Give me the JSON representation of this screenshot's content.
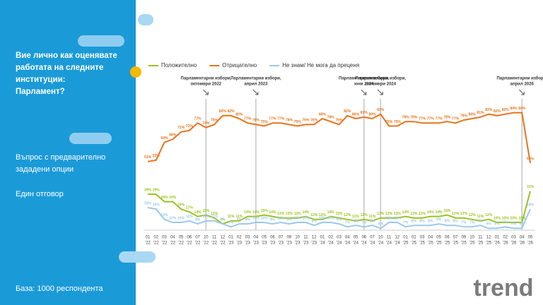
{
  "panel": {
    "title_lines": [
      "Вие лично как оценявате",
      "работата на следните",
      "институции:",
      "Парламент?"
    ],
    "question_lines": [
      "Въпрос с предварително",
      "зададени опции"
    ],
    "answer": "Един отговор",
    "base": "База:  1000 респондента",
    "logo": "trend"
  },
  "chart_data": {
    "type": "line",
    "categories": [
      {
        "month": "01",
        "year": "'22"
      },
      {
        "month": "02",
        "year": "'22"
      },
      {
        "month": "03",
        "year": "'22"
      },
      {
        "month": "04",
        "year": "'22"
      },
      {
        "month": "05",
        "year": "'22"
      },
      {
        "month": "06",
        "year": "'22"
      },
      {
        "month": "07",
        "year": "'22"
      },
      {
        "month": "10",
        "year": "'22"
      },
      {
        "month": "11",
        "year": "'22"
      },
      {
        "month": "12",
        "year": "'22"
      },
      {
        "month": "01",
        "year": "'23"
      },
      {
        "month": "02",
        "year": "'23"
      },
      {
        "month": "03",
        "year": "'23"
      },
      {
        "month": "04",
        "year": "'23"
      },
      {
        "month": "05",
        "year": "'23"
      },
      {
        "month": "06",
        "year": "'23"
      },
      {
        "month": "07",
        "year": "'23"
      },
      {
        "month": "09",
        "year": "'23"
      },
      {
        "month": "10",
        "year": "'23"
      },
      {
        "month": "11",
        "year": "'23"
      },
      {
        "month": "12",
        "year": "'23"
      },
      {
        "month": "01",
        "year": "'24"
      },
      {
        "month": "02",
        "year": "'24"
      },
      {
        "month": "03",
        "year": "'24"
      },
      {
        "month": "04",
        "year": "'24"
      },
      {
        "month": "05",
        "year": "'24"
      },
      {
        "month": "06",
        "year": "'24"
      },
      {
        "month": "07",
        "year": "'24"
      },
      {
        "month": "10",
        "year": "'24"
      },
      {
        "month": "11",
        "year": "'24"
      },
      {
        "month": "12",
        "year": "'24"
      },
      {
        "month": "01",
        "year": "'25"
      },
      {
        "month": "02",
        "year": "'25"
      },
      {
        "month": "03",
        "year": "'25"
      },
      {
        "month": "04",
        "year": "'25"
      },
      {
        "month": "05",
        "year": "'25"
      },
      {
        "month": "06",
        "year": "'25"
      },
      {
        "month": "07",
        "year": "'25"
      },
      {
        "month": "09",
        "year": "'25"
      },
      {
        "month": "10",
        "year": "'25"
      },
      {
        "month": "11",
        "year": "'25"
      },
      {
        "month": "12",
        "year": "'25"
      },
      {
        "month": "01",
        "year": "'26"
      },
      {
        "month": "02",
        "year": "'26"
      },
      {
        "month": "03",
        "year": "'26"
      },
      {
        "month": "04",
        "year": "'26"
      },
      {
        "month": "05",
        "year": "'26"
      }
    ],
    "series": [
      {
        "name": "Положително",
        "color": "#9bc31c",
        "values": [
          29,
          29,
          24,
          24,
          19,
          17,
          14,
          15,
          13,
          9,
          11,
          11,
          14,
          14,
          15,
          14,
          13,
          13,
          13,
          14,
          12,
          12,
          14,
          13,
          12,
          11,
          12,
          11,
          13,
          13,
          13,
          14,
          13,
          13,
          14,
          14,
          15,
          13,
          13,
          12,
          11,
          12,
          10,
          10,
          10,
          10,
          31
        ],
        "value_labels": [
          "29%",
          "29%",
          "24%",
          "24%",
          "19%",
          "17%",
          "14%",
          "15%",
          "13%",
          "9%",
          "11%",
          "11%",
          "14%",
          "14%",
          "15%",
          "14%",
          "13%",
          "13%",
          "13%",
          "14%",
          "12%",
          "12%",
          "14%",
          "13%",
          "12%",
          "11%",
          "12%",
          "11%",
          "13%",
          "13%",
          "13%",
          "14%",
          "13%",
          "13%",
          "14%",
          "14%",
          "15%",
          "13%",
          "13%",
          "12%",
          "11%",
          "12%",
          "10%",
          "10%",
          "10%",
          "10%",
          "31%"
        ]
      },
      {
        "name": "Отрицателно",
        "color": "#e8731c",
        "values": [
          51,
          52,
          64,
          66,
          71,
          72,
          77,
          74,
          76,
          82,
          82,
          80,
          77,
          76,
          75,
          77,
          77,
          76,
          75,
          76,
          76,
          80,
          78,
          76,
          82,
          80,
          81,
          80,
          83,
          75,
          75,
          78,
          78,
          77,
          77,
          77,
          78,
          77,
          79,
          80,
          81,
          83,
          82,
          83,
          84,
          84,
          50
        ],
        "value_labels": [
          "51%",
          "52%",
          "64%",
          "66%",
          "71%",
          "72%",
          "77%",
          "74%",
          "76%",
          "82%",
          "82%",
          "80%",
          "77%",
          "76%",
          "75%",
          "77%",
          "77%",
          "76%",
          "75%",
          "76%",
          "76%",
          "80%",
          "78%",
          "76%",
          "82%",
          "80%",
          "81%",
          "80%",
          "83%",
          "75%",
          "75%",
          "78%",
          "78%",
          "77%",
          "77%",
          "77%",
          "78%",
          "77%",
          "79%",
          "80%",
          "81%",
          "83%",
          "82%",
          "83%",
          "84%",
          "84%",
          "50%"
        ]
      },
      {
        "name": "Не знам/ Не мога да преценя",
        "color": "#9cc8ec",
        "values": [
          20,
          19,
          12,
          10,
          10,
          11,
          9,
          11,
          11,
          9,
          7,
          9,
          9,
          10,
          10,
          9,
          10,
          9,
          10,
          10,
          8,
          10,
          10,
          9,
          7,
          8,
          7,
          8,
          6,
          10,
          10,
          7,
          8,
          8,
          8,
          9,
          8,
          8,
          7,
          7,
          8,
          6,
          6,
          7,
          6,
          6,
          19
        ],
        "value_labels": [
          "20%",
          "19%",
          "12%",
          "10%",
          "10%",
          "11%",
          "9%",
          "11%",
          "11%",
          "9%",
          "7%",
          "9%",
          "9%",
          "10%",
          "10%",
          "9%",
          "10%",
          "9%",
          "10%",
          "10%",
          "8%",
          "10%",
          "10%",
          "9%",
          "7%",
          "8%",
          "7%",
          "8%",
          "6%",
          "10%",
          "10%",
          "7%",
          "8%",
          "8%",
          "8%",
          "9%",
          "8%",
          "8%",
          "7%",
          "7%",
          "8%",
          "6%",
          "6%",
          "7%",
          "6%",
          "6%",
          "19%"
        ]
      }
    ],
    "ylim": [
      0,
      100
    ],
    "annotations": [
      {
        "lines": [
          "Парламентарни избори,",
          "октомври 2022"
        ],
        "month": "10",
        "year": "'22"
      },
      {
        "lines": [
          "Парламентарни избори,",
          "април 2023"
        ],
        "month": "04",
        "year": "'23"
      },
      {
        "lines": [
          "Парламентарни избори,",
          "юни 2024"
        ],
        "month": "06",
        "year": "'24"
      },
      {
        "lines": [
          "Парламентарни избори,",
          "октомври 2024"
        ],
        "month": "10",
        "year": "'24"
      },
      {
        "lines": [
          "Парламентарни избори,",
          "април 2026"
        ],
        "month": "04",
        "year": "'26"
      }
    ]
  }
}
